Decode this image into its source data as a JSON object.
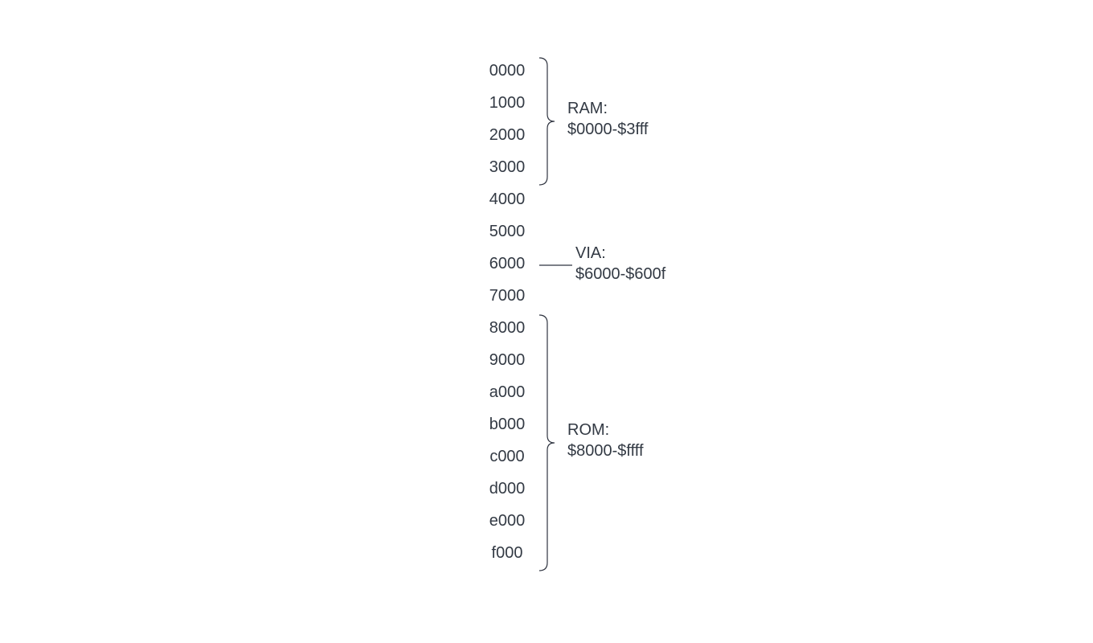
{
  "addresses": [
    "0000",
    "1000",
    "2000",
    "3000",
    "4000",
    "5000",
    "6000",
    "7000",
    "8000",
    "9000",
    "a000",
    "b000",
    "c000",
    "d000",
    "e000",
    "f000"
  ],
  "regions": {
    "ram": {
      "name": "RAM:",
      "range": "$0000-$3fff"
    },
    "via": {
      "name": "VIA:",
      "range": "$6000-$600f"
    },
    "rom": {
      "name": "ROM:",
      "range": "$8000-$ffff"
    }
  },
  "colors": {
    "text": "#333a44",
    "stroke": "#2f3440"
  }
}
